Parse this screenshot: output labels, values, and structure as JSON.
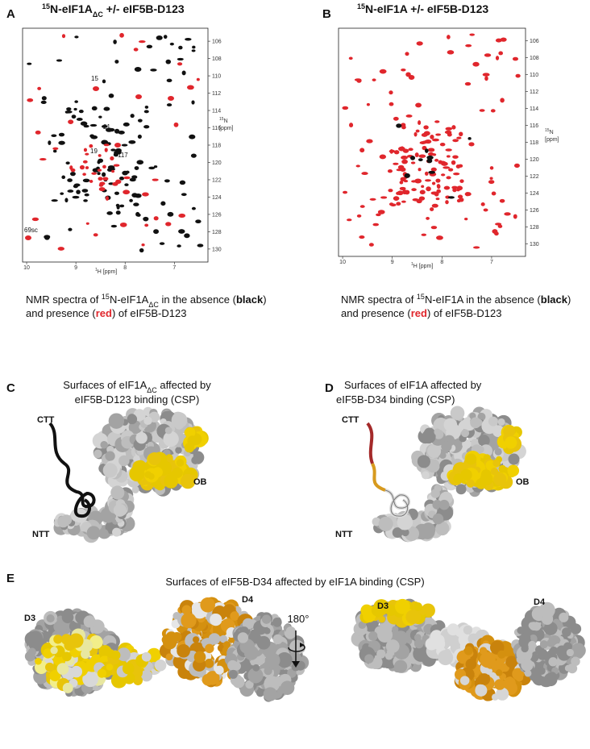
{
  "a": {
    "label": "A",
    "title": [
      "15",
      "N-eIF1A",
      "ΔC",
      " +/- eIF5B-D123"
    ],
    "x_axis": [
      "1",
      "H [ppm]"
    ],
    "y_axis": [
      "15",
      "N",
      "[ppm]"
    ],
    "xticks": [
      10,
      9,
      8,
      7
    ],
    "yticks": [
      106,
      108,
      110,
      112,
      114,
      116,
      118,
      120,
      122,
      124,
      126,
      128,
      130
    ],
    "annotations": [
      "15",
      "21",
      "19",
      "117",
      "69sc"
    ],
    "caption": [
      [
        "NMR spectra of ",
        "15",
        "N-eIF1A",
        "ΔC",
        " in the absence (",
        "black",
        ")"
      ],
      [
        "and presence (",
        "red",
        ") of eIF5B-D123"
      ]
    ]
  },
  "b": {
    "label": "B",
    "title": [
      "15",
      "N-eIF1A +/- eIF5B-D123"
    ],
    "x_axis": [
      "1",
      "H [ppm]"
    ],
    "y_axis": [
      "15",
      "N",
      "[ppm]"
    ],
    "xticks": [
      10,
      9,
      8,
      7
    ],
    "yticks": [
      106,
      108,
      110,
      112,
      114,
      116,
      118,
      120,
      122,
      124,
      126,
      128,
      130
    ],
    "caption": [
      [
        "NMR spectra of ",
        "15",
        "N-eIF1A in the absence (",
        "black",
        ")"
      ],
      [
        "and presence (",
        "red",
        ") of eIF5B-D123"
      ]
    ]
  },
  "c": {
    "label": "C",
    "title": [
      "Surfaces of eIF1A",
      "ΔC",
      "  affected by",
      "eIF5B-D123 binding (CSP)"
    ],
    "domains": [
      "CTT",
      "OB",
      "NTT"
    ]
  },
  "d": {
    "label": "D",
    "title": [
      "Surfaces of eIF1A affected by",
      "eIF5B-D34 binding (CSP)"
    ],
    "domains": [
      "CTT",
      "OB",
      "NTT"
    ]
  },
  "e": {
    "label": "E",
    "title": "Surfaces of eIF5B-D34  affected by eIF1A binding (CSP)",
    "domains": [
      "D3",
      "D4",
      "D3",
      "D4"
    ],
    "rotation": "180°"
  }
}
